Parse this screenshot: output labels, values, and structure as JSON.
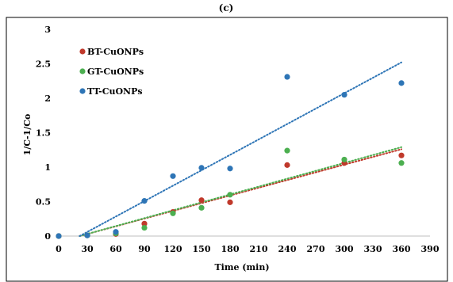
{
  "header": {
    "label": "(c)"
  },
  "chart_data": {
    "type": "scatter",
    "title": "",
    "xlabel": "Time (min)",
    "ylabel": "1/C-1/Co",
    "xlim": [
      0,
      390
    ],
    "ylim": [
      0,
      3
    ],
    "x_ticks": [
      0,
      30,
      60,
      90,
      120,
      150,
      180,
      210,
      240,
      270,
      300,
      330,
      360,
      390
    ],
    "y_ticks": [
      0,
      0.5,
      1,
      1.5,
      2,
      2.5,
      3
    ],
    "x_tick_labels": [
      "0",
      "30",
      "60",
      "90",
      "120",
      "150",
      "180",
      "210",
      "240",
      "270",
      "300",
      "330",
      "360",
      "390"
    ],
    "y_tick_labels": [
      "0",
      "0.5",
      "1",
      "1.5",
      "2",
      "2.5",
      "3"
    ],
    "grid": false,
    "legend_position": "top-left",
    "series": [
      {
        "name": "BT-CuONPs",
        "color": "#c0392b",
        "x": [
          0,
          30,
          60,
          90,
          120,
          150,
          180,
          240,
          300,
          360
        ],
        "y": [
          0,
          0.01,
          0.03,
          0.18,
          0.35,
          0.52,
          0.49,
          1.03,
          1.06,
          1.17
        ],
        "trendline": {
          "type": "linear",
          "from": [
            22,
            0
          ],
          "to": [
            360,
            1.26
          ],
          "style": "dotted"
        }
      },
      {
        "name": "GT-CuONPs",
        "color": "#4caf50",
        "x": [
          0,
          30,
          60,
          90,
          120,
          150,
          180,
          240,
          300,
          360
        ],
        "y": [
          0,
          0.01,
          0.04,
          0.12,
          0.33,
          0.41,
          0.6,
          1.24,
          1.11,
          1.06
        ],
        "trendline": {
          "type": "linear",
          "from": [
            22,
            0
          ],
          "to": [
            360,
            1.29
          ],
          "style": "dotted"
        }
      },
      {
        "name": "TT-CuONPs",
        "color": "#2e75b6",
        "x": [
          0,
          30,
          60,
          90,
          120,
          150,
          180,
          240,
          300,
          360
        ],
        "y": [
          0,
          0.01,
          0.06,
          0.51,
          0.87,
          0.99,
          0.98,
          2.31,
          2.05,
          2.22
        ],
        "trendline": {
          "type": "linear",
          "from": [
            22,
            0
          ],
          "to": [
            360,
            2.52
          ],
          "style": "dotted"
        }
      }
    ]
  }
}
